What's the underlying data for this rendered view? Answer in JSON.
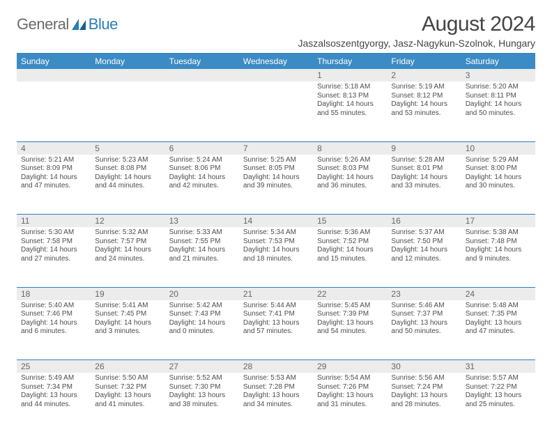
{
  "logo": {
    "general": "General",
    "blue": "Blue"
  },
  "title": "August 2024",
  "location": "Jaszalsoszentgyorgy, Jasz-Nagykun-Szolnok, Hungary",
  "weekdays": [
    "Sunday",
    "Monday",
    "Tuesday",
    "Wednesday",
    "Thursday",
    "Friday",
    "Saturday"
  ],
  "colors": {
    "header_bg": "#3b8bc4",
    "header_text": "#ffffff",
    "daynum_bg": "#ececec",
    "daynum_text": "#666666",
    "rule": "#2a7fba",
    "body_text": "#4d4d4d",
    "logo_gray": "#6a6a6a",
    "logo_blue": "#2a7fba"
  },
  "typography": {
    "title_fontsize": 30,
    "location_fontsize": 14,
    "weekday_fontsize": 12,
    "daynum_fontsize": 12,
    "cell_fontsize": 10
  },
  "weeks": [
    [
      null,
      null,
      null,
      null,
      {
        "n": "1",
        "sr": "Sunrise: 5:18 AM",
        "ss": "Sunset: 8:13 PM",
        "dl1": "Daylight: 14 hours",
        "dl2": "and 55 minutes."
      },
      {
        "n": "2",
        "sr": "Sunrise: 5:19 AM",
        "ss": "Sunset: 8:12 PM",
        "dl1": "Daylight: 14 hours",
        "dl2": "and 53 minutes."
      },
      {
        "n": "3",
        "sr": "Sunrise: 5:20 AM",
        "ss": "Sunset: 8:11 PM",
        "dl1": "Daylight: 14 hours",
        "dl2": "and 50 minutes."
      }
    ],
    [
      {
        "n": "4",
        "sr": "Sunrise: 5:21 AM",
        "ss": "Sunset: 8:09 PM",
        "dl1": "Daylight: 14 hours",
        "dl2": "and 47 minutes."
      },
      {
        "n": "5",
        "sr": "Sunrise: 5:23 AM",
        "ss": "Sunset: 8:08 PM",
        "dl1": "Daylight: 14 hours",
        "dl2": "and 44 minutes."
      },
      {
        "n": "6",
        "sr": "Sunrise: 5:24 AM",
        "ss": "Sunset: 8:06 PM",
        "dl1": "Daylight: 14 hours",
        "dl2": "and 42 minutes."
      },
      {
        "n": "7",
        "sr": "Sunrise: 5:25 AM",
        "ss": "Sunset: 8:05 PM",
        "dl1": "Daylight: 14 hours",
        "dl2": "and 39 minutes."
      },
      {
        "n": "8",
        "sr": "Sunrise: 5:26 AM",
        "ss": "Sunset: 8:03 PM",
        "dl1": "Daylight: 14 hours",
        "dl2": "and 36 minutes."
      },
      {
        "n": "9",
        "sr": "Sunrise: 5:28 AM",
        "ss": "Sunset: 8:01 PM",
        "dl1": "Daylight: 14 hours",
        "dl2": "and 33 minutes."
      },
      {
        "n": "10",
        "sr": "Sunrise: 5:29 AM",
        "ss": "Sunset: 8:00 PM",
        "dl1": "Daylight: 14 hours",
        "dl2": "and 30 minutes."
      }
    ],
    [
      {
        "n": "11",
        "sr": "Sunrise: 5:30 AM",
        "ss": "Sunset: 7:58 PM",
        "dl1": "Daylight: 14 hours",
        "dl2": "and 27 minutes."
      },
      {
        "n": "12",
        "sr": "Sunrise: 5:32 AM",
        "ss": "Sunset: 7:57 PM",
        "dl1": "Daylight: 14 hours",
        "dl2": "and 24 minutes."
      },
      {
        "n": "13",
        "sr": "Sunrise: 5:33 AM",
        "ss": "Sunset: 7:55 PM",
        "dl1": "Daylight: 14 hours",
        "dl2": "and 21 minutes."
      },
      {
        "n": "14",
        "sr": "Sunrise: 5:34 AM",
        "ss": "Sunset: 7:53 PM",
        "dl1": "Daylight: 14 hours",
        "dl2": "and 18 minutes."
      },
      {
        "n": "15",
        "sr": "Sunrise: 5:36 AM",
        "ss": "Sunset: 7:52 PM",
        "dl1": "Daylight: 14 hours",
        "dl2": "and 15 minutes."
      },
      {
        "n": "16",
        "sr": "Sunrise: 5:37 AM",
        "ss": "Sunset: 7:50 PM",
        "dl1": "Daylight: 14 hours",
        "dl2": "and 12 minutes."
      },
      {
        "n": "17",
        "sr": "Sunrise: 5:38 AM",
        "ss": "Sunset: 7:48 PM",
        "dl1": "Daylight: 14 hours",
        "dl2": "and 9 minutes."
      }
    ],
    [
      {
        "n": "18",
        "sr": "Sunrise: 5:40 AM",
        "ss": "Sunset: 7:46 PM",
        "dl1": "Daylight: 14 hours",
        "dl2": "and 6 minutes."
      },
      {
        "n": "19",
        "sr": "Sunrise: 5:41 AM",
        "ss": "Sunset: 7:45 PM",
        "dl1": "Daylight: 14 hours",
        "dl2": "and 3 minutes."
      },
      {
        "n": "20",
        "sr": "Sunrise: 5:42 AM",
        "ss": "Sunset: 7:43 PM",
        "dl1": "Daylight: 14 hours",
        "dl2": "and 0 minutes."
      },
      {
        "n": "21",
        "sr": "Sunrise: 5:44 AM",
        "ss": "Sunset: 7:41 PM",
        "dl1": "Daylight: 13 hours",
        "dl2": "and 57 minutes."
      },
      {
        "n": "22",
        "sr": "Sunrise: 5:45 AM",
        "ss": "Sunset: 7:39 PM",
        "dl1": "Daylight: 13 hours",
        "dl2": "and 54 minutes."
      },
      {
        "n": "23",
        "sr": "Sunrise: 5:46 AM",
        "ss": "Sunset: 7:37 PM",
        "dl1": "Daylight: 13 hours",
        "dl2": "and 50 minutes."
      },
      {
        "n": "24",
        "sr": "Sunrise: 5:48 AM",
        "ss": "Sunset: 7:35 PM",
        "dl1": "Daylight: 13 hours",
        "dl2": "and 47 minutes."
      }
    ],
    [
      {
        "n": "25",
        "sr": "Sunrise: 5:49 AM",
        "ss": "Sunset: 7:34 PM",
        "dl1": "Daylight: 13 hours",
        "dl2": "and 44 minutes."
      },
      {
        "n": "26",
        "sr": "Sunrise: 5:50 AM",
        "ss": "Sunset: 7:32 PM",
        "dl1": "Daylight: 13 hours",
        "dl2": "and 41 minutes."
      },
      {
        "n": "27",
        "sr": "Sunrise: 5:52 AM",
        "ss": "Sunset: 7:30 PM",
        "dl1": "Daylight: 13 hours",
        "dl2": "and 38 minutes."
      },
      {
        "n": "28",
        "sr": "Sunrise: 5:53 AM",
        "ss": "Sunset: 7:28 PM",
        "dl1": "Daylight: 13 hours",
        "dl2": "and 34 minutes."
      },
      {
        "n": "29",
        "sr": "Sunrise: 5:54 AM",
        "ss": "Sunset: 7:26 PM",
        "dl1": "Daylight: 13 hours",
        "dl2": "and 31 minutes."
      },
      {
        "n": "30",
        "sr": "Sunrise: 5:56 AM",
        "ss": "Sunset: 7:24 PM",
        "dl1": "Daylight: 13 hours",
        "dl2": "and 28 minutes."
      },
      {
        "n": "31",
        "sr": "Sunrise: 5:57 AM",
        "ss": "Sunset: 7:22 PM",
        "dl1": "Daylight: 13 hours",
        "dl2": "and 25 minutes."
      }
    ]
  ]
}
